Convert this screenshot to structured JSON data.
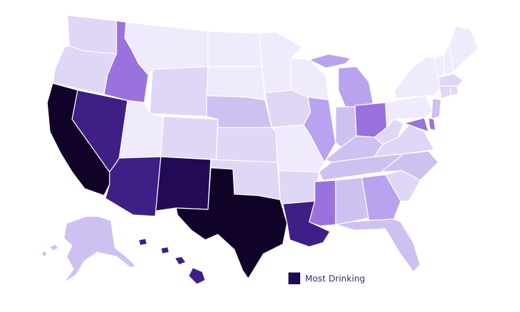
{
  "map": {
    "colors": {
      "c1": "#efeafc",
      "c2": "#e0d6f6",
      "c3": "#cfc0f2",
      "c4": "#b9a3ee",
      "c5": "#9a72dd",
      "c6": "#5f3ab0",
      "c7": "#3f1f86",
      "c8": "#220a55",
      "c9": "#110228"
    },
    "states": [
      {
        "id": "WA",
        "level": "c2"
      },
      {
        "id": "OR",
        "level": "c2"
      },
      {
        "id": "CA",
        "level": "c9"
      },
      {
        "id": "NV",
        "level": "c7"
      },
      {
        "id": "ID",
        "level": "c5"
      },
      {
        "id": "MT",
        "level": "c1"
      },
      {
        "id": "WY",
        "level": "c2"
      },
      {
        "id": "UT",
        "level": "c1"
      },
      {
        "id": "AZ",
        "level": "c7"
      },
      {
        "id": "CO",
        "level": "c2"
      },
      {
        "id": "NM",
        "level": "c8"
      },
      {
        "id": "ND",
        "level": "c1"
      },
      {
        "id": "SD",
        "level": "c1"
      },
      {
        "id": "NE",
        "level": "c3"
      },
      {
        "id": "KS",
        "level": "c2"
      },
      {
        "id": "OK",
        "level": "c2"
      },
      {
        "id": "TX",
        "level": "c9"
      },
      {
        "id": "MN",
        "level": "c1"
      },
      {
        "id": "IA",
        "level": "c2"
      },
      {
        "id": "MO",
        "level": "c1"
      },
      {
        "id": "AR",
        "level": "c2"
      },
      {
        "id": "LA",
        "level": "c7"
      },
      {
        "id": "WI",
        "level": "c1"
      },
      {
        "id": "IL",
        "level": "c4"
      },
      {
        "id": "MI",
        "level": "c4"
      },
      {
        "id": "IN",
        "level": "c3"
      },
      {
        "id": "OH",
        "level": "c5"
      },
      {
        "id": "KY",
        "level": "c3"
      },
      {
        "id": "TN",
        "level": "c3"
      },
      {
        "id": "MS",
        "level": "c5"
      },
      {
        "id": "AL",
        "level": "c3"
      },
      {
        "id": "GA",
        "level": "c4"
      },
      {
        "id": "FL",
        "level": "c3"
      },
      {
        "id": "SC",
        "level": "c2"
      },
      {
        "id": "NC",
        "level": "c3"
      },
      {
        "id": "VA",
        "level": "c2"
      },
      {
        "id": "WV",
        "level": "c2"
      },
      {
        "id": "PA",
        "level": "c1"
      },
      {
        "id": "NY",
        "level": "c1"
      },
      {
        "id": "ME",
        "level": "c1"
      },
      {
        "id": "VT",
        "level": "c1"
      },
      {
        "id": "NH",
        "level": "c1"
      },
      {
        "id": "MA",
        "level": "c2"
      },
      {
        "id": "CT",
        "level": "c2"
      },
      {
        "id": "RI",
        "level": "c2"
      },
      {
        "id": "NJ",
        "level": "c3"
      },
      {
        "id": "DE",
        "level": "c5"
      },
      {
        "id": "MD",
        "level": "c5"
      },
      {
        "id": "AK",
        "level": "c3"
      },
      {
        "id": "HI",
        "level": "c7"
      }
    ]
  },
  "legend": {
    "label": "Most Drinking",
    "color": "#220a55"
  }
}
